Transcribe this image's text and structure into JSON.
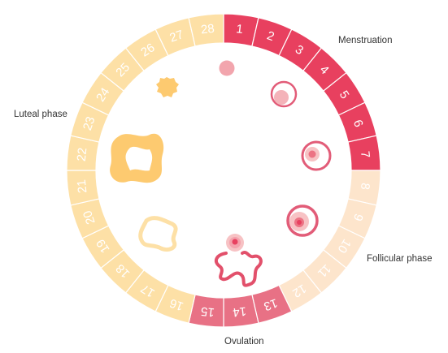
{
  "labels": {
    "menstruation": "Menstruation",
    "follicular": "Follicular phase",
    "ovulation": "Ovulation",
    "luteal": "Luteal phase"
  },
  "days": [
    {
      "n": "1",
      "phase": "menstruation"
    },
    {
      "n": "2",
      "phase": "menstruation"
    },
    {
      "n": "3",
      "phase": "menstruation"
    },
    {
      "n": "4",
      "phase": "menstruation"
    },
    {
      "n": "5",
      "phase": "menstruation"
    },
    {
      "n": "6",
      "phase": "menstruation"
    },
    {
      "n": "7",
      "phase": "menstruation"
    },
    {
      "n": "8",
      "phase": "follicular"
    },
    {
      "n": "9",
      "phase": "follicular"
    },
    {
      "n": "10",
      "phase": "follicular"
    },
    {
      "n": "11",
      "phase": "follicular"
    },
    {
      "n": "12",
      "phase": "follicular"
    },
    {
      "n": "13",
      "phase": "ovulation"
    },
    {
      "n": "14",
      "phase": "ovulation"
    },
    {
      "n": "15",
      "phase": "ovulation"
    },
    {
      "n": "16",
      "phase": "luteal"
    },
    {
      "n": "17",
      "phase": "luteal"
    },
    {
      "n": "18",
      "phase": "luteal"
    },
    {
      "n": "19",
      "phase": "luteal"
    },
    {
      "n": "20",
      "phase": "luteal"
    },
    {
      "n": "21",
      "phase": "luteal"
    },
    {
      "n": "22",
      "phase": "luteal"
    },
    {
      "n": "23",
      "phase": "luteal"
    },
    {
      "n": "24",
      "phase": "luteal"
    },
    {
      "n": "25",
      "phase": "luteal"
    },
    {
      "n": "26",
      "phase": "luteal"
    },
    {
      "n": "27",
      "phase": "luteal"
    },
    {
      "n": "28",
      "phase": "luteal"
    }
  ],
  "colors": {
    "menstruation": "#e8405f",
    "follicular": "#fde5cc",
    "ovulation": "#e87185",
    "luteal": "#fde0a6",
    "follicle_ring": "#e25c78",
    "follicle_fill": "#f2a5ad",
    "corpus_luteum": "#fdca70",
    "corpus_albicans": "#fde0a6",
    "ovum": "#e8405f"
  },
  "icons": [
    "primary-follicle-icon",
    "early-follicle-icon",
    "secondary-follicle-icon",
    "mature-follicle-icon",
    "ruptured-follicle-icon",
    "corpus-albicans-icon",
    "corpus-luteum-icon",
    "early-corpus-luteum-icon"
  ]
}
